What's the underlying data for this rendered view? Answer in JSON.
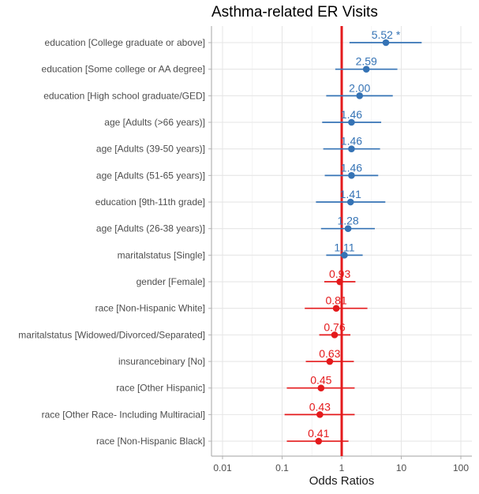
{
  "chart_data": {
    "type": "forest",
    "title": "Asthma-related ER Visits",
    "xlabel": "Odds Ratios",
    "x_scale": "log10",
    "xlim": [
      0.01,
      100
    ],
    "x_ticks": [
      0.01,
      0.1,
      1,
      10,
      100
    ],
    "x_tick_labels": [
      "0.01",
      "0.1",
      "1",
      "10",
      "100"
    ],
    "reference_line": 1,
    "grid": true,
    "colors": {
      "positive": "#3573b5",
      "negative": "#e41a1c",
      "reference": "#e41a1c"
    },
    "rows": [
      {
        "label": "education [College graduate or above]",
        "or": 5.52,
        "lo": 1.35,
        "hi": 22.0,
        "text": "5.52 *"
      },
      {
        "label": "education [Some college or AA degree]",
        "or": 2.59,
        "lo": 0.78,
        "hi": 8.6,
        "text": "2.59"
      },
      {
        "label": "education [High school graduate/GED]",
        "or": 2.0,
        "lo": 0.55,
        "hi": 7.2,
        "text": "2.00"
      },
      {
        "label": "age [Adults (>66 years)]",
        "or": 1.46,
        "lo": 0.47,
        "hi": 4.6,
        "text": "1.46"
      },
      {
        "label": "age [Adults (39-50 years)]",
        "or": 1.46,
        "lo": 0.49,
        "hi": 4.4,
        "text": "1.46"
      },
      {
        "label": "age [Adults (51-65 years)]",
        "or": 1.46,
        "lo": 0.52,
        "hi": 4.1,
        "text": "1.46"
      },
      {
        "label": "education [9th-11th grade]",
        "or": 1.41,
        "lo": 0.37,
        "hi": 5.4,
        "text": "1.41"
      },
      {
        "label": "age [Adults (26-38 years)]",
        "or": 1.28,
        "lo": 0.45,
        "hi": 3.6,
        "text": "1.28"
      },
      {
        "label": "maritalstatus [Single]",
        "or": 1.11,
        "lo": 0.55,
        "hi": 2.25,
        "text": "1.11"
      },
      {
        "label": "gender [Female]",
        "or": 0.93,
        "lo": 0.51,
        "hi": 1.7,
        "text": "0.93"
      },
      {
        "label": "race [Non-Hispanic White]",
        "or": 0.81,
        "lo": 0.24,
        "hi": 2.7,
        "text": "0.81"
      },
      {
        "label": "maritalstatus [Widowed/Divorced/Separated]",
        "or": 0.76,
        "lo": 0.42,
        "hi": 1.4,
        "text": "0.76"
      },
      {
        "label": "insurancebinary [No]",
        "or": 0.63,
        "lo": 0.25,
        "hi": 1.6,
        "text": "0.63"
      },
      {
        "label": "race [Other Hispanic]",
        "or": 0.45,
        "lo": 0.12,
        "hi": 1.65,
        "text": "0.45"
      },
      {
        "label": "race [Other Race- Including Multiracial]",
        "or": 0.43,
        "lo": 0.11,
        "hi": 1.65,
        "text": "0.43"
      },
      {
        "label": "race [Non-Hispanic Black]",
        "or": 0.41,
        "lo": 0.12,
        "hi": 1.3,
        "text": "0.41"
      }
    ]
  }
}
